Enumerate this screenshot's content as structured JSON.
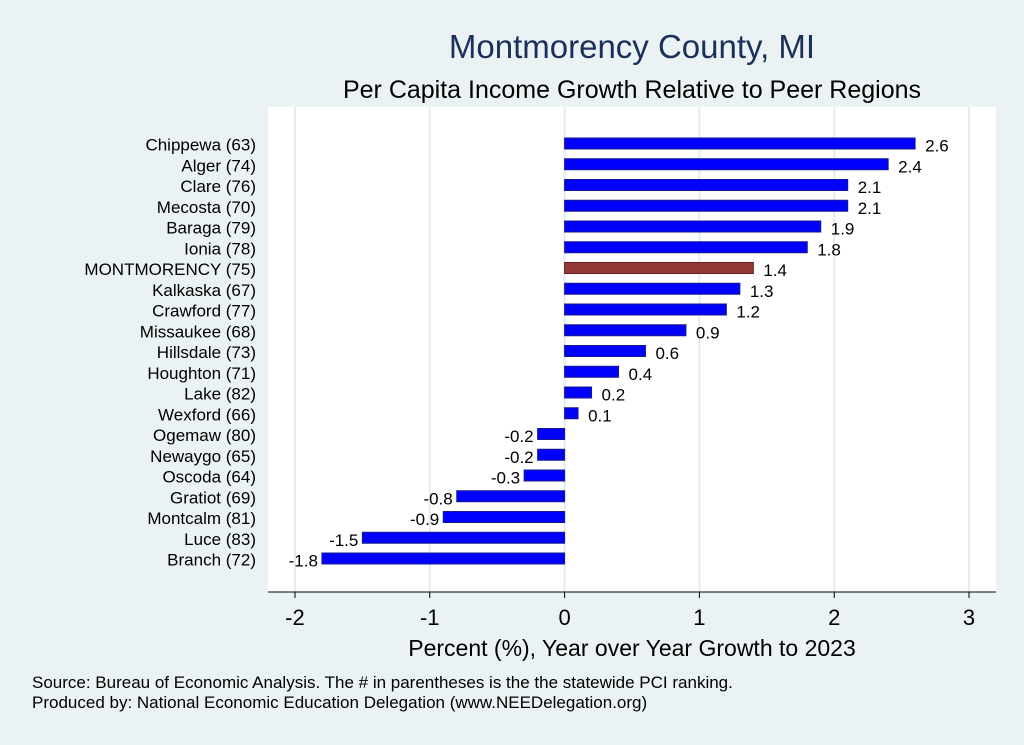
{
  "chart_data": {
    "type": "bar",
    "orientation": "horizontal",
    "title": "Montmorency County, MI",
    "subtitle": "Per Capita Income Growth Relative to Peer Regions",
    "xlabel": "Percent (%), Year over Year Growth to 2023",
    "ylabel": "",
    "xlim": [
      -2.2,
      3.2
    ],
    "xticks": [
      "-2",
      "-1",
      "0",
      "1",
      "2",
      "3"
    ],
    "xtick_values": [
      -2,
      -1,
      0,
      1,
      2,
      3
    ],
    "grid": true,
    "categories": [
      "Chippewa (63)",
      "Alger (74)",
      "Clare (76)",
      "Mecosta (70)",
      "Baraga (79)",
      "Ionia (78)",
      "MONTMORENCY (75)",
      "Kalkaska (67)",
      "Crawford (77)",
      "Missaukee (68)",
      "Hillsdale (73)",
      "Houghton (71)",
      "Lake (82)",
      "Wexford (66)",
      "Ogemaw (80)",
      "Newaygo (65)",
      "Oscoda (64)",
      "Gratiot (69)",
      "Montcalm (81)",
      "Luce (83)",
      "Branch (72)"
    ],
    "values": [
      2.6,
      2.4,
      2.1,
      2.1,
      1.9,
      1.8,
      1.4,
      1.3,
      1.2,
      0.9,
      0.6,
      0.4,
      0.2,
      0.1,
      -0.2,
      -0.2,
      -0.3,
      -0.8,
      -0.9,
      -1.5,
      -1.8
    ],
    "value_labels": [
      "2.6",
      "2.4",
      "2.1",
      "2.1",
      "1.9",
      "1.8",
      "1.4",
      "1.3",
      "1.2",
      "0.9",
      "0.6",
      "0.4",
      "0.2",
      "0.1",
      "-0.2",
      "-0.2",
      "-0.3",
      "-0.8",
      "-0.9",
      "-1.5",
      "-1.8"
    ],
    "highlight_category": "MONTMORENCY (75)",
    "colors": {
      "bar": "#0000ff",
      "bar_edge": "#1a1a8c",
      "highlight": "#943838",
      "highlight_edge": "#5a1f1f",
      "title": "#1a2f5a",
      "background": "#eaf2f3",
      "plot_background": "#ffffff",
      "grid": "#e3ecee",
      "text": "#000000"
    }
  },
  "footer": {
    "source": "Source: Bureau of Economic Analysis. The # in parentheses is the the statewide PCI ranking.",
    "produced_by": "Produced by: National Economic Education Delegation (www.NEEDelegation.org)"
  }
}
